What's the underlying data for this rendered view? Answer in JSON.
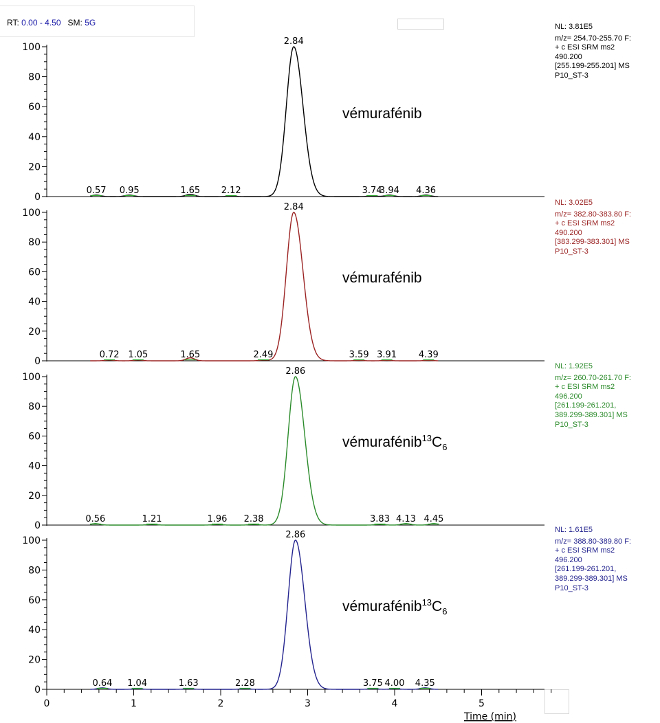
{
  "header": {
    "rt_label": "RT:",
    "rt_value": "0.00 - 4.50",
    "sm_label": "SM:",
    "sm_value": "5G"
  },
  "chart_data": {
    "type": "line",
    "x_axis": {
      "label": "Time (min)",
      "range": [
        0,
        5.8
      ],
      "ticks": [
        0,
        1,
        2,
        3,
        4,
        5
      ],
      "tick_labels": [
        "0",
        "1",
        "2",
        "3",
        "4",
        "5"
      ]
    },
    "y_axis": {
      "range": [
        0,
        100
      ],
      "ticks": [
        0,
        20,
        40,
        60,
        80,
        100
      ],
      "tick_labels": [
        "0",
        "20",
        "40",
        "60",
        "80",
        "100"
      ]
    },
    "panels": [
      {
        "color": "#000000",
        "compound": "vémurafénib",
        "superscript": "",
        "subscript": "",
        "nl": "NL: 3.81E5",
        "info_lines": [
          "m/z= 254.70-255.70 F:",
          "+ c ESI SRM ms2",
          "490.200",
          "[255.199-255.201]  MS",
          "P10_ST-3"
        ],
        "info_color": "#000000",
        "main_peak": {
          "rt": 2.84,
          "label": "2.84",
          "height": 100
        },
        "minor_peaks": [
          {
            "rt": 0.57,
            "label": "0.57",
            "height": 1.0
          },
          {
            "rt": 0.95,
            "label": "0.95",
            "height": 1.0
          },
          {
            "rt": 1.65,
            "label": "1.65",
            "height": 1.5
          },
          {
            "rt": 2.12,
            "label": "2.12",
            "height": 0.5
          },
          {
            "rt": 3.74,
            "label": "3.74",
            "height": 0.5
          },
          {
            "rt": 3.94,
            "label": "3.94",
            "height": 1.0
          },
          {
            "rt": 4.36,
            "label": "4.36",
            "height": 1.0
          }
        ]
      },
      {
        "color": "#9b2222",
        "compound": "vémurafénib",
        "superscript": "",
        "subscript": "",
        "nl": "NL: 3.02E5",
        "info_lines": [
          "m/z= 382.80-383.80 F:",
          "+ c ESI SRM ms2",
          "490.200",
          "[383.299-383.301]  MS",
          "P10_ST-3"
        ],
        "info_color": "#9b2222",
        "main_peak": {
          "rt": 2.84,
          "label": "2.84",
          "height": 100
        },
        "minor_peaks": [
          {
            "rt": 0.72,
            "label": "0.72",
            "height": 0.5
          },
          {
            "rt": 1.05,
            "label": "1.05",
            "height": 0.5
          },
          {
            "rt": 1.65,
            "label": "1.65",
            "height": 2.0
          },
          {
            "rt": 2.49,
            "label": "2.49",
            "height": 0.5
          },
          {
            "rt": 3.59,
            "label": "3.59",
            "height": 0.3
          },
          {
            "rt": 3.91,
            "label": "3.91",
            "height": 0.3
          },
          {
            "rt": 4.39,
            "label": "4.39",
            "height": 0.3
          }
        ]
      },
      {
        "color": "#2a8a2a",
        "compound": "vémurafénib",
        "superscript": "13",
        "subscript": "6",
        "nl": "NL: 1.92E5",
        "info_lines": [
          "m/z= 260.70-261.70 F:",
          "+ c ESI SRM ms2",
          "496.200",
          "[261.199-261.201,",
          "389.299-389.301]  MS",
          "P10_ST-3"
        ],
        "info_color": "#2a8a2a",
        "main_peak": {
          "rt": 2.86,
          "label": "2.86",
          "height": 100
        },
        "minor_peaks": [
          {
            "rt": 0.56,
            "label": "0.56",
            "height": 1.0
          },
          {
            "rt": 1.21,
            "label": "1.21",
            "height": 0.5
          },
          {
            "rt": 1.96,
            "label": "1.96",
            "height": 0.5
          },
          {
            "rt": 2.38,
            "label": "2.38",
            "height": 0.5
          },
          {
            "rt": 3.83,
            "label": "3.83",
            "height": 0.5
          },
          {
            "rt": 4.13,
            "label": "4.13",
            "height": 1.0
          },
          {
            "rt": 4.45,
            "label": "4.45",
            "height": 1.0
          }
        ]
      },
      {
        "color": "#23238f",
        "compound": "vémurafénib",
        "superscript": "13",
        "subscript": "6",
        "nl": "NL: 1.61E5",
        "info_lines": [
          "m/z= 388.80-389.80 F:",
          "+ c ESI SRM ms2",
          "496.200",
          "[261.199-261.201,",
          "389.299-389.301]  MS",
          "P10_ST-3"
        ],
        "info_color": "#23238f",
        "main_peak": {
          "rt": 2.86,
          "label": "2.86",
          "height": 100
        },
        "minor_peaks": [
          {
            "rt": 0.64,
            "label": "0.64",
            "height": 1.0
          },
          {
            "rt": 1.04,
            "label": "1.04",
            "height": 0.5
          },
          {
            "rt": 1.63,
            "label": "1.63",
            "height": 0.5
          },
          {
            "rt": 2.28,
            "label": "2.28",
            "height": 0.5
          },
          {
            "rt": 3.75,
            "label": "3.75",
            "height": 0.5
          },
          {
            "rt": 4.0,
            "label": "4.00",
            "height": 0.5
          },
          {
            "rt": 4.35,
            "label": "4.35",
            "height": 1.0
          }
        ]
      }
    ]
  }
}
